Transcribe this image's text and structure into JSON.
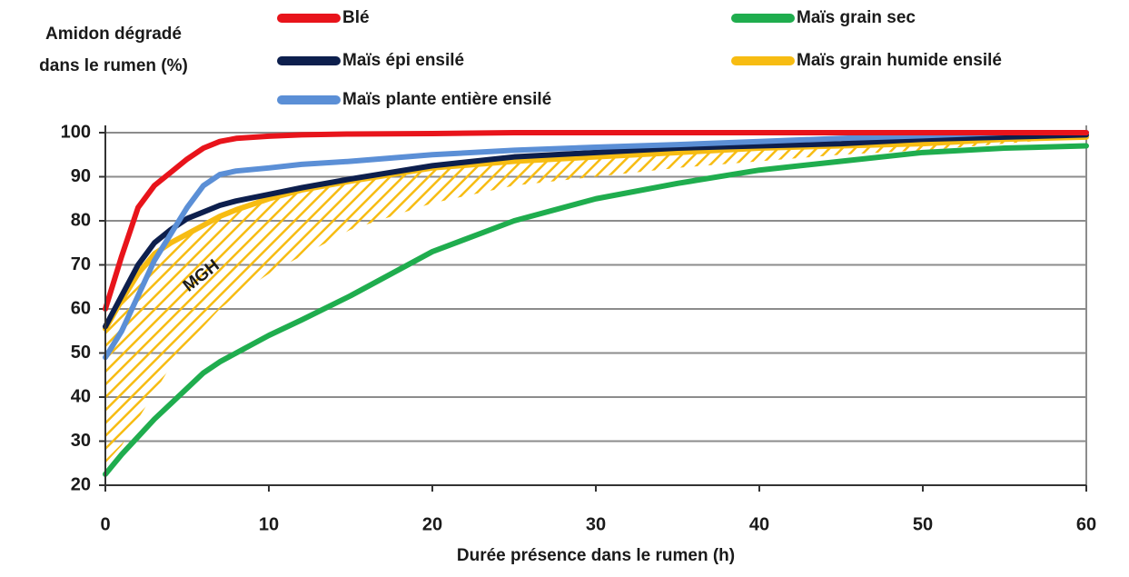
{
  "chart_data": {
    "type": "line",
    "y_label": [
      "Amidon dégradé",
      "dans le rumen  (%)"
    ],
    "x_label": "Durée présence dans le rumen (h)",
    "x": [
      0,
      1,
      2,
      3,
      4,
      5,
      6,
      7,
      8,
      10,
      12,
      15,
      20,
      25,
      30,
      35,
      40,
      45,
      50,
      55,
      60
    ],
    "series": [
      {
        "name": "Blé",
        "color": "#e8141b",
        "values": [
          60,
          72,
          83,
          88,
          91,
          94,
          96.5,
          98,
          98.7,
          99.2,
          99.5,
          99.7,
          99.8,
          100,
          100,
          100,
          100,
          100,
          100,
          100,
          100
        ]
      },
      {
        "name": "Maïs grain sec",
        "color": "#1fad4e",
        "values": [
          22.5,
          27,
          31,
          35,
          38.5,
          42,
          45.5,
          48,
          50,
          54,
          57.5,
          63,
          73,
          80,
          85,
          88.5,
          91.5,
          93.5,
          95.5,
          96.5,
          97
        ]
      },
      {
        "name": "Maïs épi ensilé",
        "color": "#0d1f4d",
        "values": [
          56,
          63,
          70,
          75,
          78,
          80.5,
          82,
          83.5,
          84.5,
          86,
          87.5,
          89.5,
          92.5,
          94.5,
          95.5,
          96.5,
          97,
          97.5,
          98.5,
          99,
          99.5
        ]
      },
      {
        "name": "Maïs grain humide ensilé",
        "color": "#f7bc12",
        "values": [
          55.5,
          62,
          68,
          72.5,
          75,
          77,
          79,
          81,
          82.5,
          85,
          87,
          89,
          92,
          93.5,
          94.5,
          95.5,
          96.5,
          97,
          97.5,
          98.5,
          99
        ]
      },
      {
        "name": "Maïs plante entière ensilé",
        "color": "#5b8fd6",
        "values": [
          49,
          55,
          63,
          71,
          77,
          83,
          88,
          90.5,
          91.3,
          92,
          92.8,
          93.5,
          95,
          96,
          96.7,
          97.3,
          98,
          98.7,
          99.3,
          100,
          100
        ]
      }
    ],
    "band": {
      "label": "MGH",
      "color": "#f7bc12",
      "values": [
        25,
        29,
        35,
        41,
        47,
        52,
        56,
        60,
        63,
        68,
        72,
        78,
        84,
        88,
        90,
        92,
        93.5,
        95,
        96,
        97.5,
        99
      ]
    },
    "xlim": [
      0,
      60
    ],
    "xticks": [
      0,
      10,
      20,
      30,
      40,
      50,
      60
    ],
    "ylim": [
      20,
      100
    ],
    "yticks": [
      20,
      30,
      40,
      50,
      60,
      70,
      80,
      90,
      100
    ],
    "grid": true
  }
}
